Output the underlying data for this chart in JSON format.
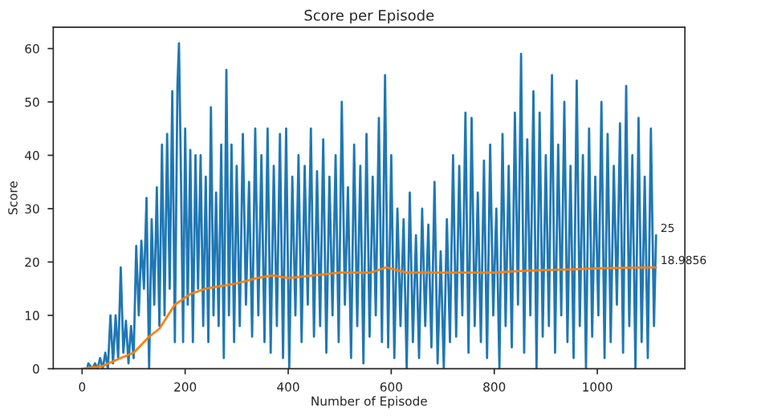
{
  "chart_data": {
    "type": "line",
    "title": "Score per Episode",
    "xlabel": "Number of Episode",
    "ylabel": "Score",
    "xlim": [
      -56,
      1170
    ],
    "ylim": [
      0,
      64
    ],
    "xticks": [
      0,
      200,
      400,
      600,
      800,
      1000
    ],
    "yticks": [
      0,
      10,
      20,
      30,
      40,
      50,
      60
    ],
    "grid": false,
    "legend": false,
    "series": [
      {
        "color": "#1f77b4",
        "x": [
          0,
          10,
          12,
          20,
          25,
          30,
          35,
          40,
          45,
          50,
          55,
          60,
          65,
          70,
          75,
          80,
          85,
          90,
          95,
          100,
          105,
          110,
          115,
          120,
          125,
          130,
          135,
          140,
          145,
          150,
          155,
          160,
          165,
          170,
          175,
          180,
          185,
          188,
          192,
          196,
          200,
          205,
          210,
          215,
          220,
          225,
          230,
          235,
          240,
          245,
          250,
          255,
          260,
          265,
          270,
          275,
          280,
          285,
          290,
          295,
          300,
          306,
          312,
          318,
          324,
          330,
          336,
          342,
          348,
          354,
          360,
          366,
          372,
          378,
          384,
          390,
          396,
          402,
          408,
          414,
          420,
          426,
          432,
          438,
          444,
          450,
          456,
          462,
          468,
          474,
          480,
          486,
          492,
          498,
          504,
          510,
          516,
          522,
          528,
          534,
          540,
          546,
          552,
          558,
          564,
          570,
          576,
          582,
          588,
          594,
          600,
          606,
          612,
          618,
          624,
          630,
          636,
          642,
          648,
          654,
          660,
          666,
          672,
          678,
          684,
          690,
          696,
          702,
          708,
          714,
          720,
          726,
          732,
          738,
          744,
          750,
          756,
          762,
          768,
          774,
          780,
          786,
          792,
          798,
          804,
          810,
          816,
          822,
          828,
          834,
          840,
          846,
          852,
          858,
          864,
          870,
          876,
          882,
          888,
          894,
          900,
          906,
          912,
          918,
          924,
          930,
          936,
          942,
          948,
          954,
          960,
          966,
          972,
          978,
          984,
          990,
          996,
          1002,
          1008,
          1014,
          1020,
          1026,
          1032,
          1038,
          1044,
          1050,
          1056,
          1062,
          1068,
          1074,
          1080,
          1086,
          1092,
          1098,
          1104,
          1110,
          1114
        ],
        "values": [
          0,
          0,
          1,
          0,
          1,
          0,
          2,
          0,
          3,
          0,
          10,
          1,
          10,
          2,
          19,
          3,
          9,
          1,
          8,
          2,
          23,
          10,
          24,
          15,
          32,
          0,
          28,
          12,
          34,
          8,
          42,
          10,
          44,
          15,
          52,
          5,
          53,
          61,
          35,
          5,
          45,
          12,
          41,
          5,
          40,
          15,
          40,
          8,
          36,
          5,
          49,
          10,
          33,
          8,
          42,
          2,
          56,
          10,
          42,
          5,
          38,
          8,
          44,
          12,
          35,
          6,
          45,
          10,
          40,
          5,
          45,
          3,
          38,
          8,
          44,
          2,
          45,
          0,
          36,
          10,
          40,
          5,
          38,
          12,
          45,
          6,
          37,
          8,
          43,
          3,
          36,
          10,
          40,
          5,
          50,
          12,
          34,
          2,
          42,
          8,
          38,
          1,
          44,
          6,
          36,
          10,
          47,
          5,
          55,
          4,
          40,
          2,
          30,
          8,
          28,
          0,
          33,
          5,
          25,
          2,
          30,
          8,
          27,
          4,
          35,
          1,
          22,
          0,
          28,
          5,
          40,
          6,
          38,
          10,
          48,
          3,
          47,
          8,
          33,
          5,
          39,
          2,
          42,
          10,
          30,
          0,
          44,
          8,
          38,
          4,
          48,
          12,
          59,
          3,
          43,
          10,
          52,
          0,
          48,
          6,
          40,
          8,
          55,
          3,
          42,
          10,
          50,
          5,
          38,
          2,
          54,
          8,
          40,
          0,
          45,
          6,
          36,
          10,
          50,
          2,
          44,
          5,
          38,
          12,
          46,
          3,
          53,
          8,
          40,
          0,
          47,
          5,
          36,
          2,
          45,
          8,
          25
        ]
      },
      {
        "color": "#ff7f0e",
        "x": [
          0,
          40,
          75,
          100,
          130,
          150,
          180,
          210,
          240,
          270,
          300,
          340,
          370,
          400,
          450,
          500,
          560,
          590,
          630,
          700,
          800,
          850,
          900,
          950,
          1000,
          1050,
          1114
        ],
        "values": [
          0,
          0.5,
          2,
          3,
          6,
          7.5,
          12,
          14,
          15,
          15.5,
          16,
          17,
          17.5,
          17,
          17.5,
          18,
          18,
          19,
          18,
          18,
          18,
          18.3,
          18.5,
          18.6,
          18.8,
          18.9,
          18.9856
        ]
      }
    ],
    "annotations": [
      {
        "text": "25",
        "x": 1114,
        "y": 25
      },
      {
        "text": "18.9856",
        "x": 1114,
        "y": 18.9856
      }
    ]
  }
}
